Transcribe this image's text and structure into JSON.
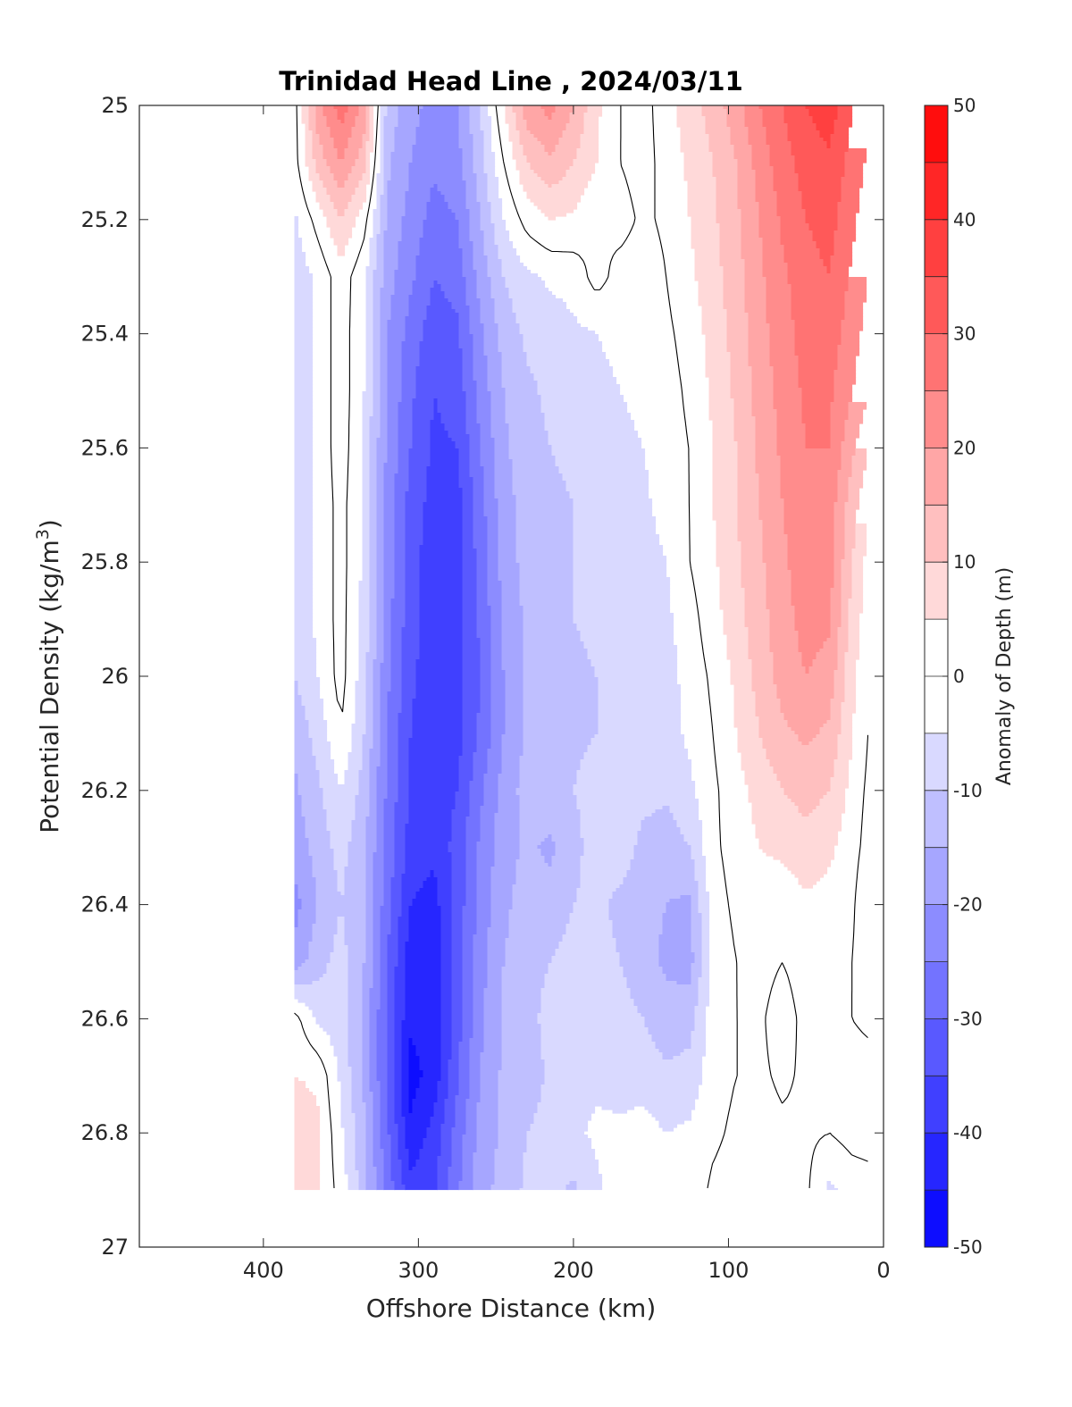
{
  "chart_data": {
    "type": "heatmap",
    "subtype": "filled-contour",
    "title": "Trinidad Head Line , 2024/03/11",
    "xlabel": "Offshore Distance (km)",
    "ylabel_main": "Potential Density (kg/m",
    "ylabel_sup": "3",
    "ylabel_close": ")",
    "colorbar_label": "Anomaly of Depth (m)",
    "x_range": [
      480,
      0
    ],
    "x_reversed": true,
    "x_ticks": [
      400,
      300,
      200,
      100,
      0
    ],
    "y_range": [
      25,
      27
    ],
    "y_reversed": true,
    "y_ticks": [
      "25",
      "25.2",
      "25.4",
      "25.6",
      "25.8",
      "26",
      "26.2",
      "26.4",
      "26.6",
      "26.8",
      "27"
    ],
    "colorbar_range": [
      -50,
      50
    ],
    "colorbar_ticks": [
      "50",
      "40",
      "30",
      "20",
      "10",
      "0",
      "-10",
      "-20",
      "-30",
      "-40",
      "-50"
    ],
    "contour_levels": [
      -50,
      -45,
      -40,
      -35,
      -30,
      -25,
      -20,
      -15,
      -10,
      -5,
      0,
      5,
      10,
      15,
      20,
      25,
      30,
      35,
      40,
      45,
      50
    ],
    "data_extent": {
      "x": [
        380,
        10
      ],
      "y": [
        25,
        26.9
      ]
    },
    "x": [
      380,
      365,
      350,
      335,
      320,
      305,
      290,
      275,
      260,
      245,
      230,
      215,
      200,
      185,
      170,
      155,
      140,
      125,
      110,
      95,
      80,
      65,
      50,
      35,
      20,
      10
    ],
    "y": [
      25,
      25.1,
      25.2,
      25.3,
      25.4,
      25.5,
      25.6,
      25.7,
      25.8,
      25.9,
      26,
      26.1,
      26.2,
      26.3,
      26.4,
      26.5,
      26.6,
      26.7,
      26.8,
      26.9
    ],
    "z": [
      [
        -2,
        18,
        28,
        18,
        -12,
        -18,
        -22,
        -20,
        -10,
        5,
        18,
        22,
        15,
        6,
        0,
        -2,
        3,
        8,
        12,
        18,
        25,
        30,
        35,
        38,
        30,
        28
      ],
      [
        -2,
        12,
        20,
        12,
        -14,
        -20,
        -24,
        -22,
        -12,
        0,
        10,
        14,
        10,
        5,
        0,
        -2,
        2,
        6,
        10,
        15,
        22,
        28,
        32,
        34,
        28,
        24
      ],
      [
        -6,
        2,
        10,
        2,
        -16,
        -22,
        -27,
        -25,
        -15,
        -5,
        2,
        5,
        4,
        0,
        2,
        -1,
        1,
        5,
        9,
        14,
        20,
        26,
        30,
        32,
        26,
        22
      ],
      [
        -8,
        -4,
        3,
        -4,
        -18,
        -24,
        -30,
        -28,
        -18,
        -10,
        -6,
        -4,
        -3,
        2,
        -2,
        -3,
        0,
        4,
        8,
        13,
        19,
        24,
        28,
        30,
        24,
        20
      ],
      [
        -8,
        -4,
        3,
        -5,
        -20,
        -27,
        -33,
        -31,
        -21,
        -13,
        -9,
        -8,
        -6,
        -5,
        -4,
        -3,
        -1,
        2,
        7,
        12,
        18,
        23,
        27,
        28,
        22,
        18
      ],
      [
        -8,
        -4,
        3,
        -5,
        -20,
        -29,
        -35,
        -33,
        -23,
        -15,
        -11,
        -9,
        -8,
        -6,
        -5,
        -4,
        -2,
        1,
        6,
        11,
        17,
        22,
        26,
        26,
        20,
        16
      ],
      [
        -8,
        -4,
        3,
        -6,
        -21,
        -30,
        -36,
        -35,
        -25,
        -16,
        -12,
        -10,
        -9,
        -8,
        -6,
        -5,
        -2,
        0,
        5,
        10,
        16,
        21,
        25,
        25,
        16,
        10
      ],
      [
        -8,
        -4,
        2,
        -6,
        -22,
        -32,
        -37,
        -37,
        -27,
        -17,
        -13,
        -11,
        -10,
        -9,
        -7,
        -6,
        -3,
        0,
        5,
        10,
        15,
        20,
        24,
        23,
        12,
        6
      ],
      [
        -8,
        -4,
        2,
        -6,
        -22,
        -33,
        -38,
        -37,
        -28,
        -18,
        -13,
        -11,
        -10,
        -9,
        -7,
        -7,
        -5,
        0,
        4,
        9,
        14,
        19,
        23,
        22,
        10,
        3
      ],
      [
        -8,
        -4,
        2,
        -7,
        -23,
        -33,
        -38,
        -37,
        -29,
        -19,
        -14,
        -11,
        -10,
        -9,
        -8,
        -7,
        -6,
        -2,
        3,
        8,
        13,
        18,
        22,
        21,
        8,
        2
      ],
      [
        -10,
        -5,
        2,
        -8,
        -24,
        -34,
        -38,
        -37,
        -30,
        -20,
        -14,
        -12,
        -11,
        -10,
        -8,
        -8,
        -7,
        -3,
        1,
        6,
        12,
        17,
        20,
        18,
        6,
        1
      ],
      [
        -14,
        -8,
        0,
        -10,
        -25,
        -35,
        -39,
        -37,
        -29,
        -20,
        -14,
        -12,
        -11,
        -10,
        -8,
        -8,
        -7,
        -4,
        0,
        5,
        10,
        14,
        16,
        14,
        5,
        0
      ],
      [
        -16,
        -11,
        -5,
        -12,
        -26,
        -36,
        -38,
        -35,
        -26,
        -18,
        -13,
        -12,
        -10,
        -8,
        -7,
        -8,
        -9,
        -6,
        -1,
        3,
        7,
        10,
        12,
        10,
        3,
        -1
      ],
      [
        -18,
        -13,
        -8,
        -14,
        -27,
        -37,
        -39,
        -33,
        -24,
        -17,
        -14,
        -16,
        -12,
        -7,
        -6,
        -12,
        -13,
        -10,
        -1,
        2,
        5,
        6,
        8,
        6,
        2,
        -2
      ],
      [
        -22,
        -15,
        -10,
        -15,
        -28,
        -40,
        -42,
        -33,
        -23,
        -16,
        -13,
        -13,
        -10,
        -8,
        -12,
        -14,
        -15,
        -16,
        -2,
        1,
        3,
        2,
        4,
        3,
        1,
        -5
      ],
      [
        -18,
        -12,
        -8,
        -15,
        -30,
        -43,
        -43,
        -33,
        -22,
        -15,
        -12,
        -10,
        -8,
        -7,
        -10,
        -13,
        -16,
        -17,
        -3,
        0,
        2,
        0,
        3,
        1,
        0,
        -4
      ],
      [
        2,
        -6,
        -8,
        -16,
        -31,
        -44,
        -43,
        -32,
        -21,
        -14,
        -12,
        -8,
        -7,
        -6,
        -8,
        -10,
        -13,
        -12,
        -2,
        0,
        1,
        -3,
        2,
        0,
        0,
        -1
      ],
      [
        5,
        4,
        -6,
        -16,
        -31,
        -47,
        -43,
        -31,
        -20,
        -14,
        -13,
        -9,
        -7,
        -6,
        -7,
        -7,
        -9,
        -8,
        -2,
        0,
        1,
        -1,
        1,
        1,
        2,
        2
      ],
      [
        9,
        6,
        -4,
        -14,
        -29,
        -44,
        -38,
        -28,
        -18,
        -14,
        -10,
        -8,
        -6,
        -4,
        -4,
        -3,
        -5,
        -4,
        -1,
        1,
        2,
        1,
        1,
        0,
        2,
        2
      ],
      [
        8,
        5,
        -2,
        -13,
        -27,
        -38,
        -36,
        -26,
        -17,
        -13,
        -9,
        -8,
        -11,
        -6,
        -2,
        -1,
        -4,
        -3,
        1,
        2,
        3,
        2,
        1,
        -6,
        -3,
        -2
      ]
    ]
  }
}
